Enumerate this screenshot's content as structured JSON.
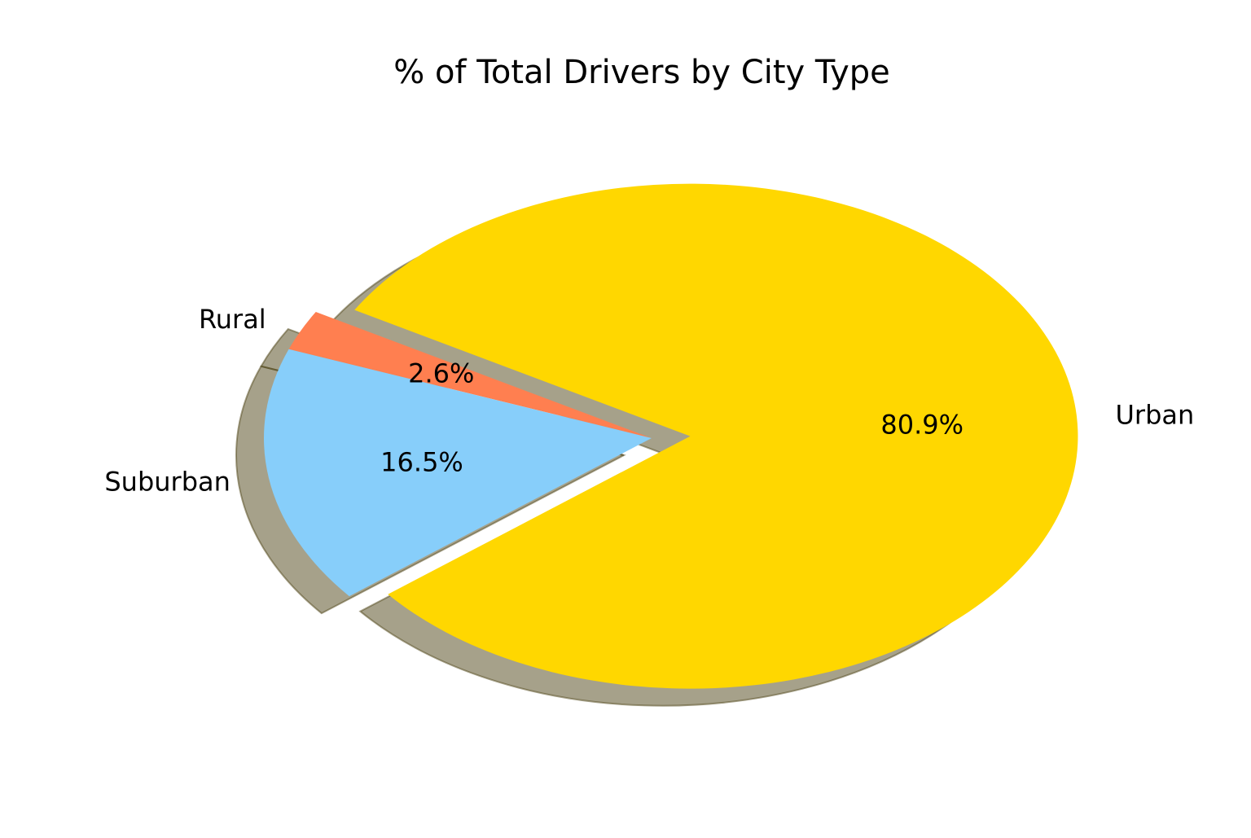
{
  "chart_data": {
    "type": "pie",
    "title": "% of Total Drivers by City Type",
    "categories": [
      "Rural",
      "Suburban",
      "Urban"
    ],
    "values": [
      2.6,
      16.5,
      80.9
    ],
    "value_labels": [
      "2.6%",
      "16.5%",
      "80.9%"
    ],
    "colors": [
      "#FF7F50",
      "#87CEFA",
      "#FFD700"
    ],
    "exploded": [
      "Urban"
    ],
    "shadow": true,
    "legend": false
  }
}
